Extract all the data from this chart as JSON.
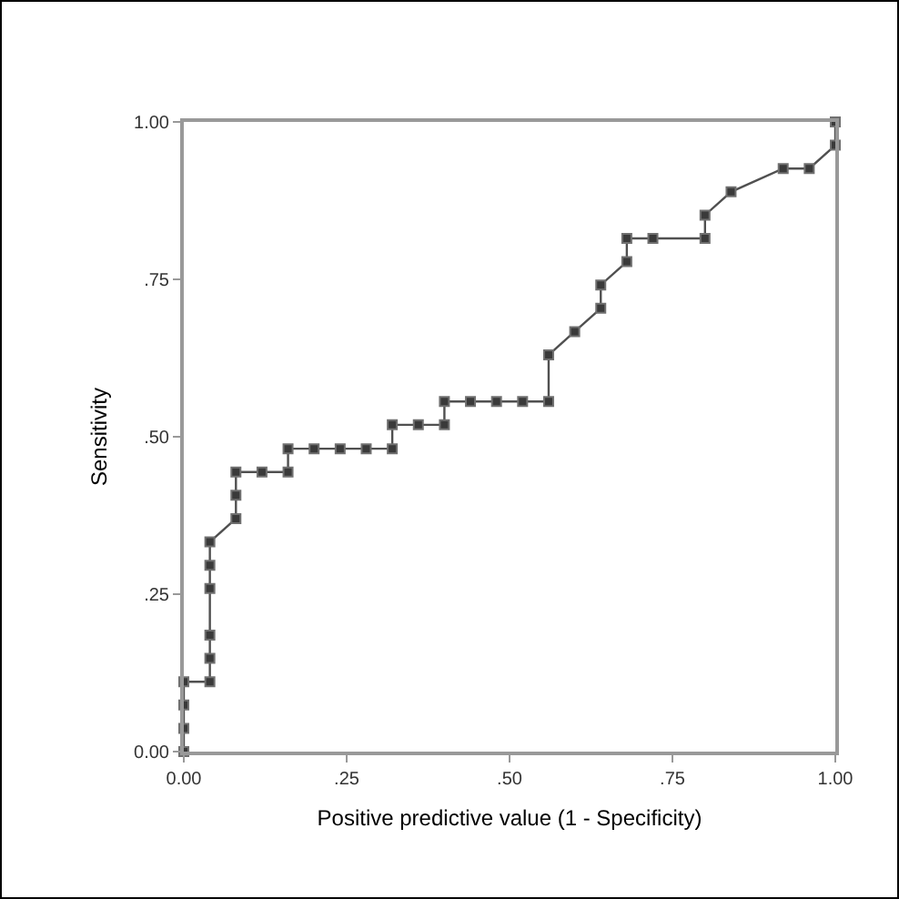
{
  "chart_data": {
    "type": "line",
    "xlabel": "Positive predictive value (1 - Specificity)",
    "ylabel": "Sensitivity",
    "x": [
      0,
      0,
      0,
      0,
      0.04,
      0.04,
      0.04,
      0.04,
      0.04,
      0.04,
      0.08,
      0.08,
      0.08,
      0.12,
      0.16,
      0.16,
      0.2,
      0.24,
      0.28,
      0.32,
      0.32,
      0.36,
      0.4,
      0.4,
      0.44,
      0.48,
      0.52,
      0.56,
      0.56,
      0.6,
      0.64,
      0.64,
      0.68,
      0.68,
      0.72,
      0.8,
      0.8,
      0.84,
      0.92,
      0.96,
      1,
      1
    ],
    "series": [
      {
        "color": "#505050",
        "values": [
          0,
          0.037,
          0.074,
          0.111,
          0.111,
          0.148,
          0.185,
          0.259,
          0.296,
          0.333,
          0.37,
          0.407,
          0.444,
          0.444,
          0.444,
          0.481,
          0.481,
          0.481,
          0.481,
          0.481,
          0.519,
          0.519,
          0.519,
          0.556,
          0.556,
          0.556,
          0.556,
          0.556,
          0.63,
          0.667,
          0.704,
          0.741,
          0.778,
          0.815,
          0.815,
          0.815,
          0.852,
          0.889,
          0.926,
          0.926,
          0.963,
          1
        ]
      }
    ],
    "xlim": [
      0,
      1
    ],
    "ylim": [
      0,
      1
    ],
    "xticks": [
      {
        "value": 0,
        "label": "0.00"
      },
      {
        "value": 0.25,
        "label": ".25"
      },
      {
        "value": 0.5,
        "label": ".50"
      },
      {
        "value": 0.75,
        "label": ".75"
      },
      {
        "value": 1,
        "label": "1.00"
      }
    ],
    "yticks": [
      {
        "value": 0,
        "label": "0.00"
      },
      {
        "value": 0.25,
        "label": ".25"
      },
      {
        "value": 0.5,
        "label": ".50"
      },
      {
        "value": 0.75,
        "label": ".75"
      },
      {
        "value": 1,
        "label": "1.00"
      }
    ],
    "grid": false,
    "marker": "square",
    "line_style": "solid"
  }
}
